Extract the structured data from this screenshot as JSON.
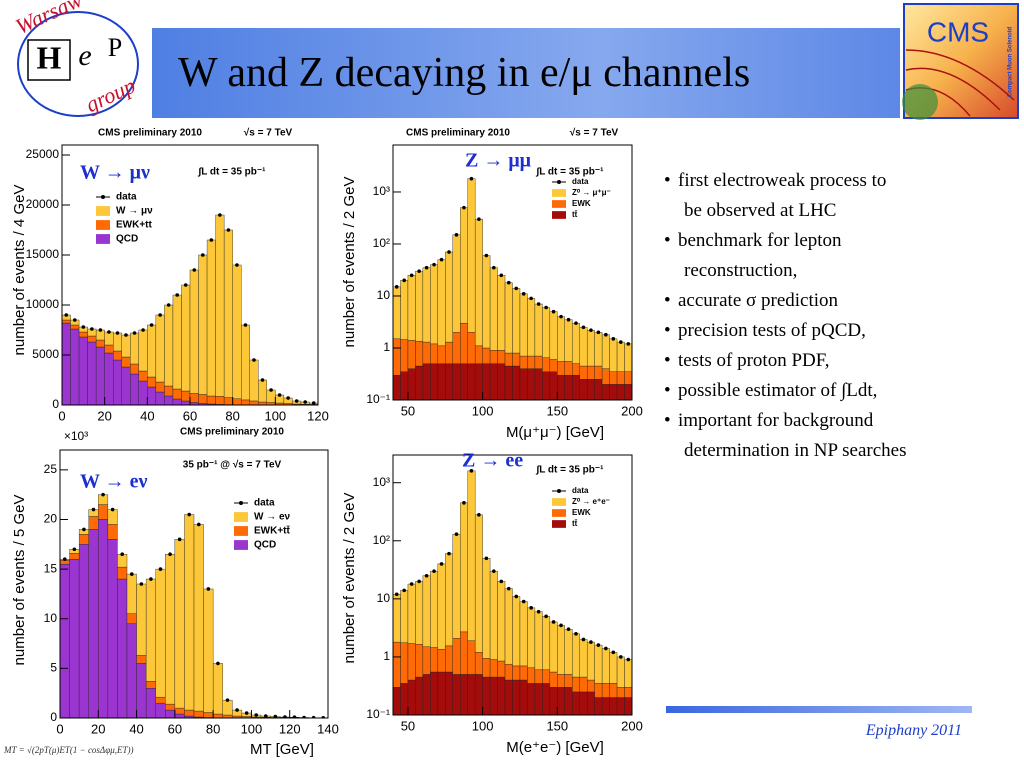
{
  "slide": {
    "title": "W and Z decaying in e/μ channels",
    "logo_left": {
      "top": "Warsaw",
      "h": "H",
      "e": "e",
      "p": "P",
      "bottom": "group"
    },
    "logo_right": {
      "name": "CMS",
      "subtitle": "Compact Muon Solenoid"
    },
    "bullets": [
      [
        "first electroweak process to",
        "be observed at LHC"
      ],
      [
        "benchmark for lepton",
        "reconstruction,"
      ],
      [
        "accurate σ prediction"
      ],
      [
        "precision tests of pQCD,"
      ],
      [
        "tests of proton PDF,"
      ],
      [
        "possible estimator of ∫Ldt,"
      ],
      [
        "important for background",
        "determination in NP searches"
      ]
    ],
    "formula": "MT = √(2pT(μ)ET(1 − cosΔφμ,ET))",
    "footer": "Epiphany 2011"
  },
  "chart_data": [
    {
      "type": "histogram",
      "header": "CMS preliminary 2010",
      "energy": "√s = 7 TeV",
      "luminosity": "∫L dt = 35 pb⁻¹",
      "channel": "W → μν",
      "ylabel": "number of events / 4 GeV",
      "bins": [
        0,
        4,
        8,
        12,
        16,
        20,
        24,
        28,
        32,
        36,
        40,
        44,
        48,
        52,
        56,
        60,
        64,
        68,
        72,
        76,
        80,
        84,
        88,
        92,
        96,
        100,
        104,
        108,
        112,
        116,
        120
      ],
      "xlim": [
        0,
        120
      ],
      "xticks": [
        0,
        20,
        40,
        60,
        80,
        100,
        120
      ],
      "ylim": [
        0,
        26000
      ],
      "yticks": [
        0,
        5000,
        10000,
        15000,
        20000,
        25000
      ],
      "log_y": false,
      "data": {
        "name": "data",
        "color": "#000000",
        "values": [
          9000,
          8500,
          7800,
          7600,
          7500,
          7300,
          7200,
          7000,
          7200,
          7500,
          8000,
          9000,
          10000,
          11000,
          12000,
          13500,
          15000,
          16500,
          19000,
          17500,
          14000,
          8000,
          4500,
          2500,
          1500,
          1000,
          700,
          400,
          300,
          200
        ]
      },
      "series": [
        {
          "name": "W → μν",
          "color": "#fcc83a",
          "values": [
            500,
            500,
            500,
            700,
            1000,
            1300,
            1800,
            2200,
            3100,
            4100,
            5200,
            6700,
            8100,
            9400,
            10600,
            12350,
            13950,
            15600,
            18140,
            16760,
            13380,
            7490,
            4095,
            2200,
            1250,
            800,
            550,
            300,
            220,
            140
          ]
        },
        {
          "name": "EWK+tt",
          "color": "#fd6a06",
          "values": [
            300,
            400,
            500,
            600,
            700,
            800,
            900,
            1000,
            1000,
            1000,
            1000,
            1000,
            1000,
            1000,
            1000,
            900,
            900,
            800,
            800,
            700,
            600,
            500,
            400,
            300,
            250,
            200,
            150,
            100,
            80,
            60
          ]
        },
        {
          "name": "QCD",
          "color": "#9b35d0",
          "values": [
            8200,
            7600,
            6800,
            6300,
            5800,
            5200,
            4500,
            3800,
            3100,
            2400,
            1800,
            1300,
            900,
            600,
            400,
            250,
            150,
            100,
            60,
            40,
            20,
            10,
            5,
            0,
            0,
            0,
            0,
            0,
            0,
            0
          ]
        }
      ]
    },
    {
      "type": "histogram",
      "header": "CMS preliminary 2010",
      "energy": "√s = 7 TeV",
      "luminosity": "∫L dt = 35 pb⁻¹",
      "channel": "Z → μμ",
      "ylabel": "number of events / 2 GeV",
      "xlabel": "M(μ⁺μ⁻) [GeV]",
      "bins": [
        40,
        45,
        50,
        55,
        60,
        65,
        70,
        75,
        80,
        85,
        90,
        95,
        100,
        105,
        110,
        115,
        120,
        125,
        130,
        135,
        140,
        145,
        150,
        155,
        160,
        165,
        170,
        175,
        180,
        185,
        190,
        195,
        200
      ],
      "xlim": [
        40,
        200
      ],
      "xticks": [
        50,
        100,
        150,
        200
      ],
      "ylim": [
        0.1,
        8000
      ],
      "yticks": [
        {
          "value": 0.1,
          "label": "10⁻¹"
        },
        1,
        10,
        {
          "value": 100,
          "label": "10²"
        },
        {
          "value": 1000,
          "label": "10³"
        }
      ],
      "log_y": true,
      "data": {
        "name": "data",
        "color": "#000000",
        "values": [
          15,
          20,
          25,
          30,
          35,
          40,
          50,
          70,
          150,
          500,
          1800,
          300,
          60,
          35,
          25,
          18,
          14,
          11,
          9,
          7,
          6,
          5,
          4,
          3.5,
          3,
          2.5,
          2.2,
          2,
          1.8,
          1.5,
          1.3,
          1.2
        ]
      },
      "series": [
        {
          "name": "Z⁰ → μ⁺μ⁻",
          "color": "#fcc83a",
          "values": [
            13.5,
            18.55,
            23.6,
            28.65,
            33.7,
            38.8,
            48.9,
            68.7,
            148,
            497,
            1798,
            298.9,
            59,
            34.1,
            24.1,
            17.2,
            13.2,
            10.3,
            8.3,
            6.3,
            5.35,
            4.4,
            3.45,
            2.95,
            2.5,
            2.05,
            1.75,
            1.55,
            1.4,
            1.15,
            0.95,
            0.85
          ]
        },
        {
          "name": "EWK",
          "color": "#fd6a06",
          "values": [
            1.2,
            1.1,
            1.0,
            0.9,
            0.8,
            0.7,
            0.6,
            0.8,
            1.5,
            2.5,
            1.5,
            0.6,
            0.5,
            0.4,
            0.4,
            0.35,
            0.35,
            0.3,
            0.3,
            0.3,
            0.3,
            0.25,
            0.25,
            0.25,
            0.2,
            0.2,
            0.2,
            0.2,
            0.2,
            0.15,
            0.15,
            0.15
          ]
        },
        {
          "name": "tt̄",
          "color": "#a40b0b",
          "values": [
            0.3,
            0.35,
            0.4,
            0.45,
            0.5,
            0.5,
            0.5,
            0.5,
            0.5,
            0.5,
            0.5,
            0.5,
            0.5,
            0.5,
            0.5,
            0.45,
            0.45,
            0.4,
            0.4,
            0.4,
            0.35,
            0.35,
            0.3,
            0.3,
            0.3,
            0.25,
            0.25,
            0.25,
            0.2,
            0.2,
            0.2,
            0.2
          ]
        }
      ]
    },
    {
      "type": "histogram",
      "header": "CMS preliminary 2010",
      "luminosity": "35 pb⁻¹ @ √s = 7 TeV",
      "multiplier": "×10³",
      "channel": "W → eν",
      "ylabel": "number of events / 5 GeV",
      "xlabel": "MT [GeV]",
      "bins": [
        0,
        5,
        10,
        15,
        20,
        25,
        30,
        35,
        40,
        45,
        50,
        55,
        60,
        65,
        70,
        75,
        80,
        85,
        90,
        95,
        100,
        105,
        110,
        115,
        120,
        125,
        130,
        135,
        140
      ],
      "xlim": [
        0,
        140
      ],
      "xticks": [
        0,
        20,
        40,
        60,
        80,
        100,
        120,
        140
      ],
      "ylim": [
        0,
        27
      ],
      "yticks": [
        0,
        5,
        10,
        15,
        20,
        25
      ],
      "log_y": false,
      "data": {
        "name": "data",
        "color": "#000000",
        "values": [
          16,
          17,
          19,
          21,
          22.5,
          21,
          16.5,
          14.5,
          13.5,
          14,
          15,
          16.5,
          18,
          20.5,
          19.5,
          13,
          5.5,
          1.8,
          0.8,
          0.5,
          0.3,
          0.2,
          0.15,
          0.1,
          0.08,
          0.05,
          0.03,
          0.02
        ]
      },
      "series": [
        {
          "name": "W → eν",
          "color": "#fcc83a",
          "values": [
            0.1,
            0.4,
            0.5,
            0.7,
            1,
            1.5,
            1.3,
            4,
            7.2,
            10.3,
            12.9,
            15.1,
            17,
            19.7,
            18.8,
            12.45,
            5.1,
            1.5,
            0.6,
            0.35,
            0.2,
            0.12,
            0.09,
            0.05,
            0.04,
            0.02,
            0.01,
            0.01
          ]
        },
        {
          "name": "EWK+tt̄",
          "color": "#fd6a06",
          "values": [
            0.4,
            0.6,
            1,
            1.3,
            1.5,
            1.5,
            1.2,
            1,
            0.8,
            0.7,
            0.6,
            0.6,
            0.6,
            0.6,
            0.6,
            0.5,
            0.4,
            0.3,
            0.2,
            0.15,
            0.1,
            0.08,
            0.06,
            0.05,
            0.04,
            0.03,
            0.02,
            0.01
          ]
        },
        {
          "name": "QCD",
          "color": "#9b35d0",
          "values": [
            15.5,
            16,
            17.5,
            19,
            20,
            18,
            14,
            9.5,
            5.5,
            3,
            1.5,
            0.8,
            0.4,
            0.2,
            0.1,
            0.05,
            0,
            0,
            0,
            0,
            0,
            0,
            0,
            0,
            0,
            0,
            0,
            0
          ]
        }
      ]
    },
    {
      "type": "histogram",
      "luminosity": "∫L dt = 35 pb⁻¹",
      "channel": "Z → ee",
      "ylabel": "number of events / 2 GeV",
      "xlabel": "M(e⁺e⁻) [GeV]",
      "bins": [
        40,
        45,
        50,
        55,
        60,
        65,
        70,
        75,
        80,
        85,
        90,
        95,
        100,
        105,
        110,
        115,
        120,
        125,
        130,
        135,
        140,
        145,
        150,
        155,
        160,
        165,
        170,
        175,
        180,
        185,
        190,
        195,
        200
      ],
      "xlim": [
        40,
        200
      ],
      "xticks": [
        50,
        100,
        150,
        200
      ],
      "ylim": [
        0.1,
        3000
      ],
      "yticks": [
        {
          "value": 0.1,
          "label": "10⁻¹"
        },
        1,
        10,
        {
          "value": 100,
          "label": "10²"
        },
        {
          "value": 1000,
          "label": "10³"
        }
      ],
      "log_y": true,
      "data": {
        "name": "data",
        "color": "#000000",
        "values": [
          12,
          14,
          18,
          20,
          25,
          30,
          40,
          60,
          130,
          450,
          1600,
          280,
          50,
          30,
          20,
          15,
          11,
          9,
          7,
          6,
          5,
          4,
          3.5,
          3,
          2.5,
          2,
          1.8,
          1.6,
          1.4,
          1.2,
          1,
          0.9
        ]
      },
      "series": [
        {
          "name": "Z⁰ → e⁺e⁻",
          "color": "#fcc83a",
          "values": [
            10.2,
            12.25,
            16.3,
            18.35,
            23.5,
            28.55,
            38.65,
            58.45,
            127.9,
            447.3,
            1598.1,
            278.8,
            49.05,
            29.1,
            19.15,
            14.25,
            10.3,
            8.3,
            6.35,
            5.4,
            4.4,
            3.45,
            3,
            2.5,
            2.05,
            1.55,
            1.4,
            1.25,
            1.05,
            0.85,
            0.7,
            0.6
          ]
        },
        {
          "name": "EWK",
          "color": "#fd6a06",
          "values": [
            1.5,
            1.4,
            1.3,
            1.2,
            1.0,
            0.9,
            0.8,
            1.0,
            1.6,
            2.2,
            1.4,
            0.7,
            0.5,
            0.45,
            0.4,
            0.35,
            0.3,
            0.3,
            0.3,
            0.25,
            0.25,
            0.25,
            0.2,
            0.2,
            0.2,
            0.2,
            0.15,
            0.15,
            0.15,
            0.15,
            0.1,
            0.1
          ]
        },
        {
          "name": "tt̄",
          "color": "#a40b0b",
          "values": [
            0.3,
            0.35,
            0.4,
            0.45,
            0.5,
            0.55,
            0.55,
            0.55,
            0.5,
            0.5,
            0.5,
            0.5,
            0.45,
            0.45,
            0.45,
            0.4,
            0.4,
            0.4,
            0.35,
            0.35,
            0.35,
            0.3,
            0.3,
            0.3,
            0.25,
            0.25,
            0.25,
            0.2,
            0.2,
            0.2,
            0.2,
            0.2
          ]
        }
      ]
    }
  ]
}
